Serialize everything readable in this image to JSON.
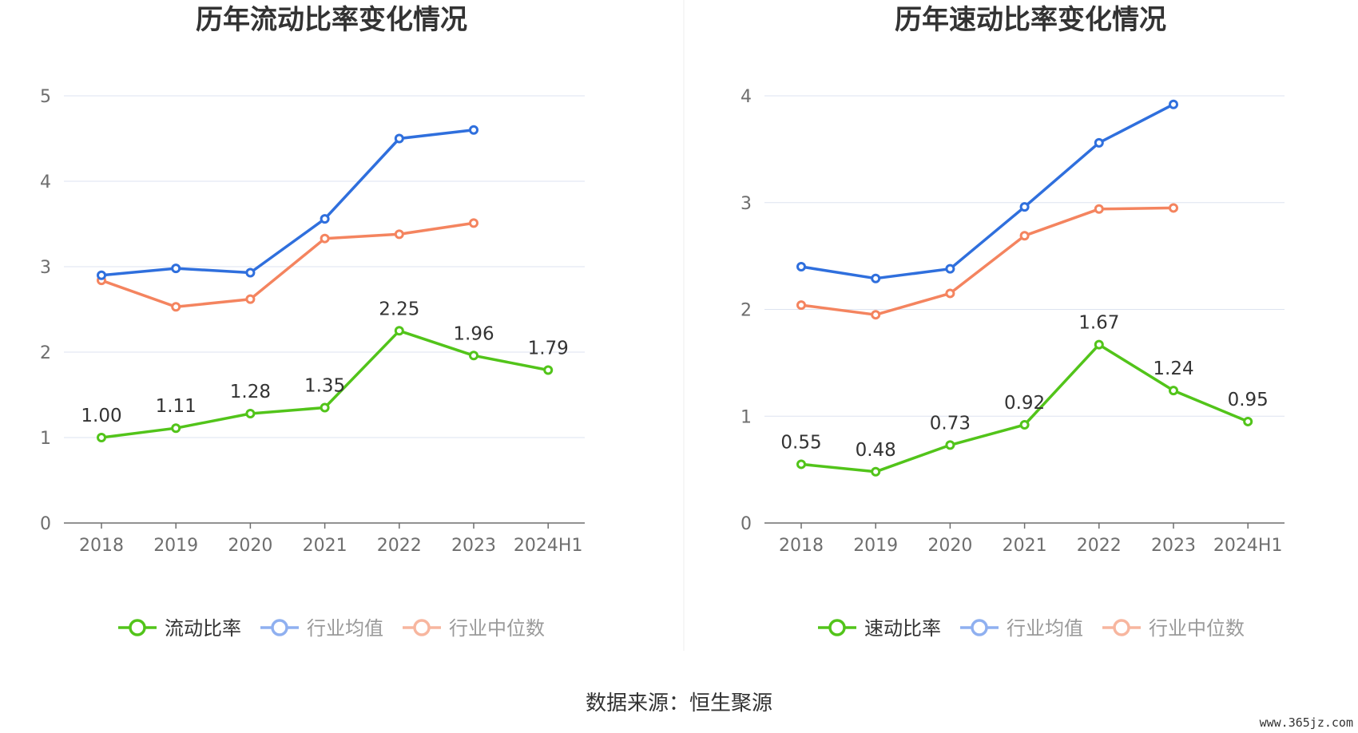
{
  "footer": {
    "source": "数据来源：恒生聚源",
    "watermark": "www.365jz.com"
  },
  "colors": {
    "company": "#52c41a",
    "avg": "#2f6fdd",
    "median": "#f4845f",
    "legend_avg": "#8fb0f0",
    "legend_median": "#f7b69f",
    "grid": "#dde3f0",
    "axis": "#6e6e6e",
    "tick": "#6e6e6e",
    "label": "#333333"
  },
  "chart_data": [
    {
      "type": "line",
      "title": "历年流动比率变化情况",
      "categories": [
        "2018",
        "2019",
        "2020",
        "2021",
        "2022",
        "2023",
        "2024H1"
      ],
      "ylim": [
        0,
        5
      ],
      "yticks": [
        "0",
        "1",
        "2",
        "3",
        "4",
        "5"
      ],
      "grid": true,
      "legend_position": "bottom",
      "series": [
        {
          "name": "流动比率",
          "values": [
            1.0,
            1.11,
            1.28,
            1.35,
            2.25,
            1.96,
            1.79
          ],
          "labels": [
            "1.00",
            "1.11",
            "1.28",
            "1.35",
            "2.25",
            "1.96",
            "1.79"
          ]
        },
        {
          "name": "行业均值",
          "values": [
            2.9,
            2.98,
            2.93,
            3.56,
            4.5,
            4.6,
            null
          ]
        },
        {
          "name": "行业中位数",
          "values": [
            2.84,
            2.53,
            2.62,
            3.33,
            3.38,
            3.51,
            null
          ]
        }
      ]
    },
    {
      "type": "line",
      "title": "历年速动比率变化情况",
      "categories": [
        "2018",
        "2019",
        "2020",
        "2021",
        "2022",
        "2023",
        "2024H1"
      ],
      "ylim": [
        0,
        4
      ],
      "yticks": [
        "0",
        "1",
        "2",
        "3",
        "4"
      ],
      "grid": true,
      "legend_position": "bottom",
      "series": [
        {
          "name": "速动比率",
          "values": [
            0.55,
            0.48,
            0.73,
            0.92,
            1.67,
            1.24,
            0.95
          ],
          "labels": [
            "0.55",
            "0.48",
            "0.73",
            "0.92",
            "1.67",
            "1.24",
            "0.95"
          ]
        },
        {
          "name": "行业均值",
          "values": [
            2.4,
            2.29,
            2.38,
            2.96,
            3.56,
            3.92,
            null
          ]
        },
        {
          "name": "行业中位数",
          "values": [
            2.04,
            1.95,
            2.15,
            2.69,
            2.94,
            2.95,
            null
          ]
        }
      ]
    }
  ]
}
